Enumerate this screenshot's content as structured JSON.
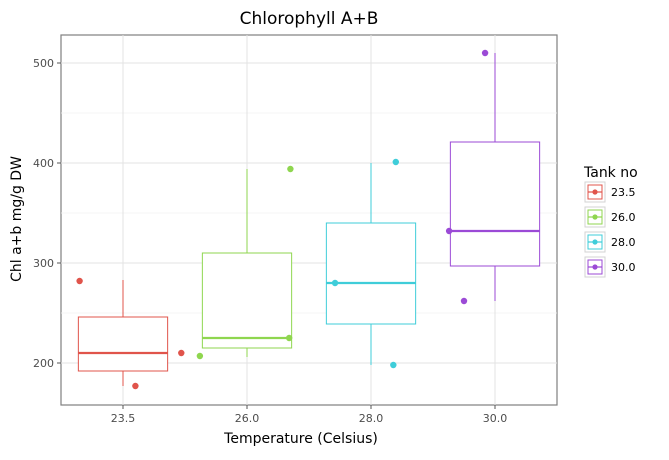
{
  "chart_data": {
    "type": "box",
    "title": "Chlorophyll A+B",
    "xlabel": "Temperature (Celsius)",
    "ylabel": "Chl a+b mg/g DW",
    "ylim": [
      158,
      528
    ],
    "yticks": [
      200,
      300,
      400,
      500
    ],
    "categories": [
      "23.5",
      "26.0",
      "28.0",
      "30.0"
    ],
    "grid": true,
    "legend": {
      "title": "Tank no",
      "position": "right"
    },
    "series": [
      {
        "name": "23.5",
        "color": "#e0544b",
        "box": {
          "whisker_low": 177,
          "q1": 192,
          "median": 210,
          "q3": 246,
          "whisker_high": 283
        },
        "points": [
          {
            "x": "23.5",
            "offset": -0.35,
            "y": 282
          },
          {
            "x": "23.5",
            "offset": 0.1,
            "y": 177
          },
          {
            "x": "23.5",
            "offset": 0.47,
            "y": 210
          }
        ]
      },
      {
        "name": "26.0",
        "color": "#8fd64f",
        "box": {
          "whisker_low": 206,
          "q1": 215,
          "median": 225,
          "q3": 310,
          "whisker_high": 394
        },
        "points": [
          {
            "x": "26.0",
            "offset": -0.38,
            "y": 207
          },
          {
            "x": "26.0",
            "offset": 0.34,
            "y": 225
          },
          {
            "x": "26.0",
            "offset": 0.35,
            "y": 394
          }
        ]
      },
      {
        "name": "28.0",
        "color": "#3fcdd9",
        "box": {
          "whisker_low": 198,
          "q1": 239,
          "median": 280,
          "q3": 340,
          "whisker_high": 400
        },
        "points": [
          {
            "x": "28.0",
            "offset": -0.29,
            "y": 280
          },
          {
            "x": "28.0",
            "offset": 0.18,
            "y": 198
          },
          {
            "x": "28.0",
            "offset": 0.2,
            "y": 401
          }
        ]
      },
      {
        "name": "30.0",
        "color": "#9b4ad6",
        "box": {
          "whisker_low": 262,
          "q1": 297,
          "median": 332,
          "q3": 421,
          "whisker_high": 510
        },
        "points": [
          {
            "x": "30.0",
            "offset": -0.37,
            "y": 332
          },
          {
            "x": "30.0",
            "offset": -0.25,
            "y": 262
          },
          {
            "x": "30.0",
            "offset": -0.08,
            "y": 510
          }
        ]
      }
    ]
  }
}
